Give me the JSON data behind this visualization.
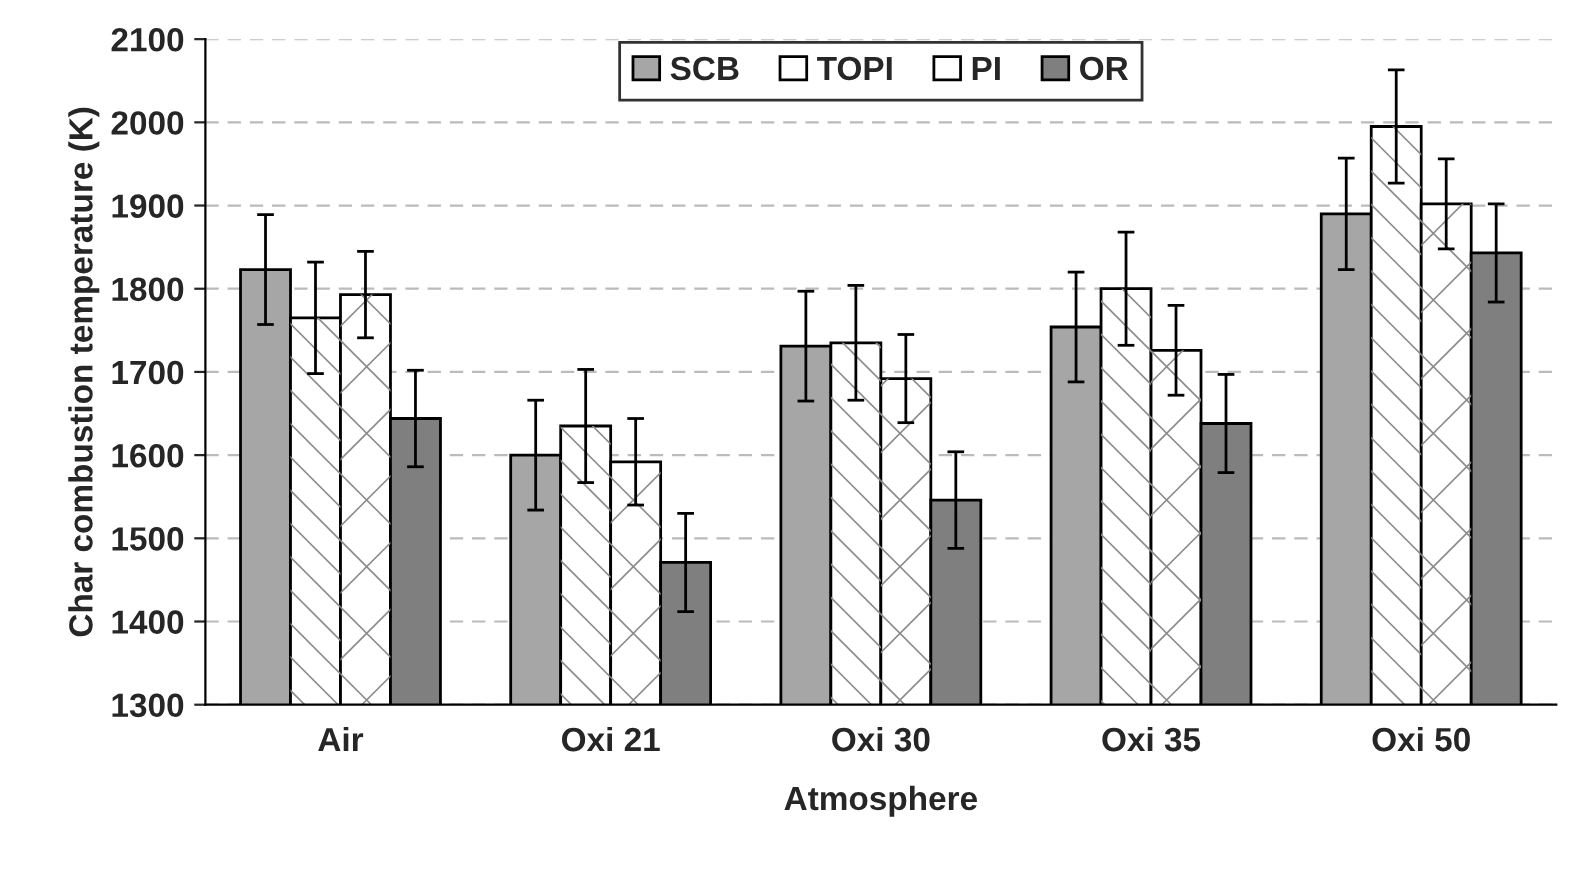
{
  "chart_data": {
    "type": "bar",
    "xlabel": "Atmosphere",
    "ylabel": "Char combustion temperature (K)",
    "categories": [
      "Air",
      "Oxi 21",
      "Oxi 30",
      "Oxi 35",
      "Oxi 50"
    ],
    "series": [
      {
        "name": "SCB",
        "color": "#a6a6a6",
        "values": [
          1823,
          1600,
          1731,
          1754,
          1890
        ],
        "errors": [
          66,
          66,
          66,
          66,
          67
        ]
      },
      {
        "name": "TOPI",
        "color": "#ffffff",
        "values": [
          1765,
          1635,
          1735,
          1800,
          1995
        ],
        "errors": [
          67,
          68,
          69,
          68,
          68
        ]
      },
      {
        "name": "PI",
        "color": "#ffffff",
        "values": [
          1793,
          1592,
          1692,
          1726,
          1902
        ],
        "errors": [
          52,
          52,
          53,
          54,
          54
        ]
      },
      {
        "name": "OR",
        "color": "#7f7f7f",
        "values": [
          1644,
          1471,
          1546,
          1638,
          1843
        ],
        "errors": [
          58,
          59,
          58,
          59,
          59
        ]
      }
    ],
    "ylim": [
      1300,
      2100
    ],
    "yticks": [
      1300,
      1400,
      1500,
      1600,
      1700,
      1800,
      1900,
      2000,
      2100
    ],
    "grid": "y",
    "legend": "top"
  }
}
